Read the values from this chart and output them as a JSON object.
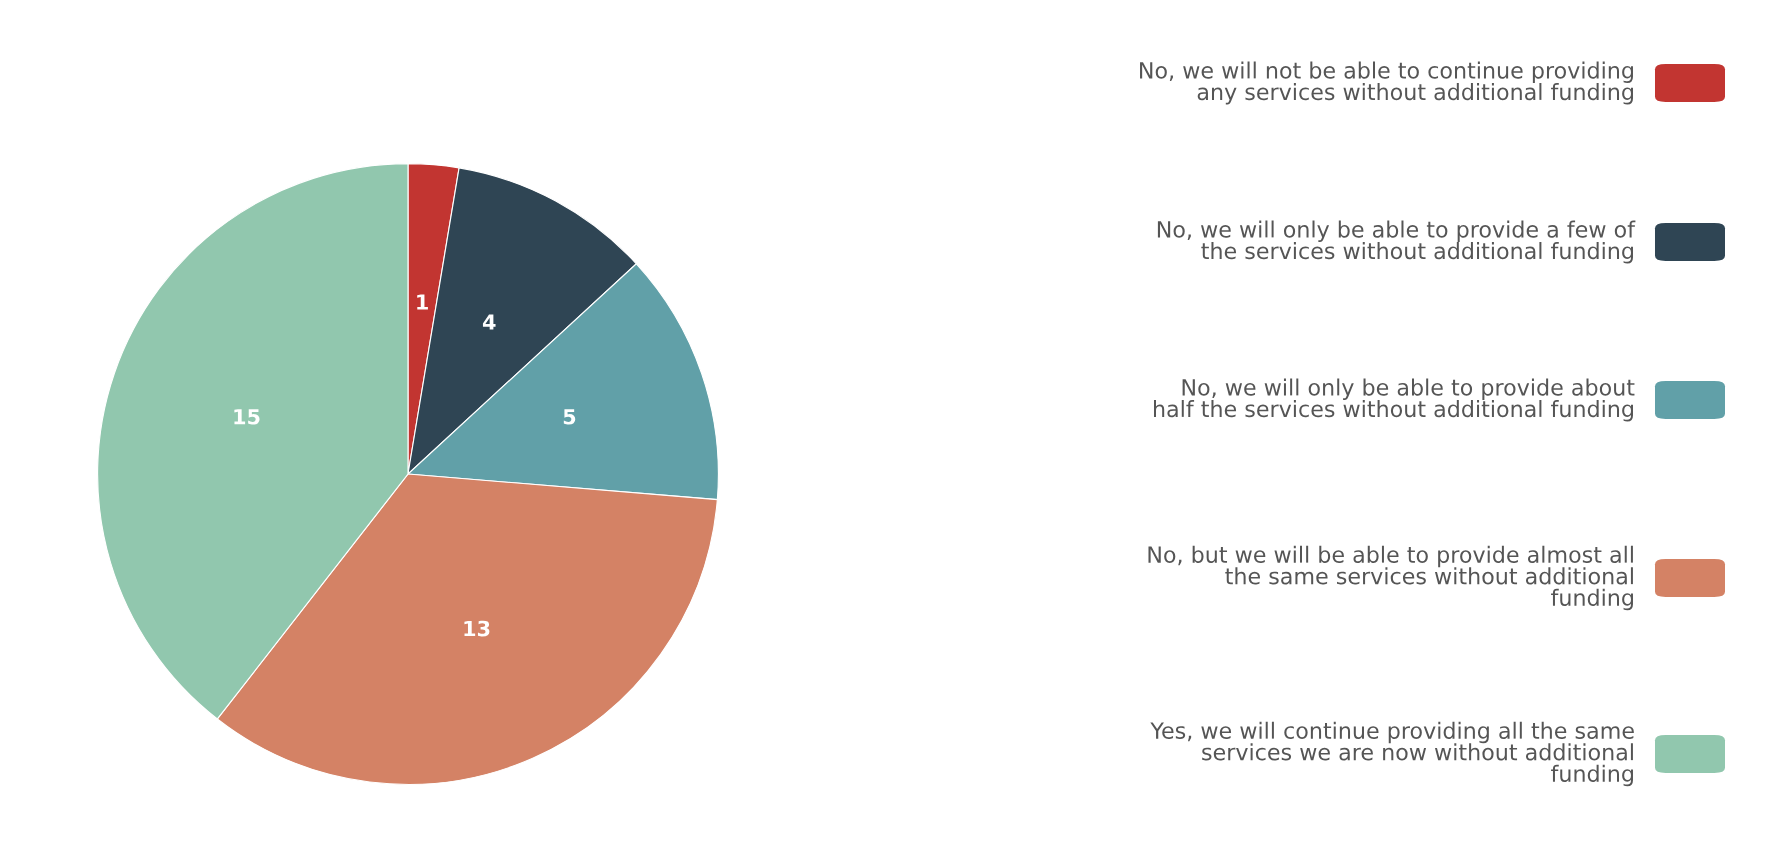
{
  "chart_data": {
    "type": "pie",
    "categories": [
      "No, we will not be able to continue providing any services without additional funding",
      "No, we will only be able to provide a few of the services without additional funding",
      "No, we will only be able to provide about half the services without additional funding",
      "No, but we will be able to provide almost all the same services without additional funding",
      "Yes, we will continue providing all the same services we are now without additional funding"
    ],
    "values": [
      1,
      4,
      5,
      13,
      15
    ],
    "colors": [
      "#c23531",
      "#2f4554",
      "#61a0a8",
      "#d48265",
      "#91c7ae"
    ],
    "data_labels": true,
    "legend": "right"
  }
}
